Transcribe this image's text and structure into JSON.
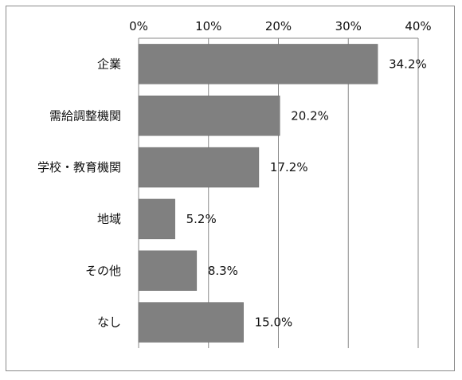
{
  "chart_data": {
    "type": "bar",
    "orientation": "horizontal",
    "categories": [
      "企業",
      "需給調整機関",
      "学校・教育機関",
      "地域",
      "その他",
      "なし"
    ],
    "values": [
      34.2,
      20.2,
      17.2,
      5.2,
      8.3,
      15.0
    ],
    "value_labels": [
      "34.2%",
      "20.2%",
      "17.2%",
      "5.2%",
      "8.3%",
      "15.0%"
    ],
    "xlim": [
      0,
      40
    ],
    "xticks": [
      0,
      10,
      20,
      30,
      40
    ],
    "xtick_labels": [
      "0%",
      "10%",
      "20%",
      "30%",
      "40%"
    ],
    "x_axis_position": "top",
    "grid": "vertical",
    "legend": "none",
    "bar_color": "#808080"
  }
}
